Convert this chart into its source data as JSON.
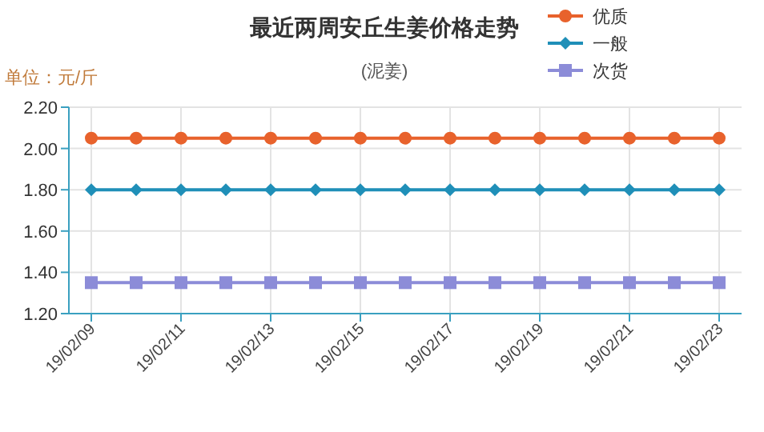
{
  "chart_data": {
    "type": "line",
    "title": "最近两周安丘生姜价格走势",
    "subtitle": "(泥姜)",
    "ylabel": "单位：元/斤",
    "categories": [
      "19/02/09",
      null,
      "19/02/11",
      null,
      "19/02/13",
      null,
      "19/02/15",
      null,
      "19/02/17",
      null,
      "19/02/19",
      null,
      "19/02/21",
      null,
      "19/02/23"
    ],
    "series": [
      {
        "name": "优质",
        "color": "#e8622c",
        "marker": "circle",
        "values": [
          2.05,
          2.05,
          2.05,
          2.05,
          2.05,
          2.05,
          2.05,
          2.05,
          2.05,
          2.05,
          2.05,
          2.05,
          2.05,
          2.05,
          2.05
        ]
      },
      {
        "name": "一般",
        "color": "#1f8fb8",
        "marker": "diamond",
        "values": [
          1.8,
          1.8,
          1.8,
          1.8,
          1.8,
          1.8,
          1.8,
          1.8,
          1.8,
          1.8,
          1.8,
          1.8,
          1.8,
          1.8,
          1.8
        ]
      },
      {
        "name": "次货",
        "color": "#8c8cd8",
        "marker": "square",
        "values": [
          1.35,
          1.35,
          1.35,
          1.35,
          1.35,
          1.35,
          1.35,
          1.35,
          1.35,
          1.35,
          1.35,
          1.35,
          1.35,
          1.35,
          1.35
        ]
      }
    ],
    "ylim": [
      1.2,
      2.2
    ],
    "yticks": [
      {
        "value": 1.2,
        "label": "1.20"
      },
      {
        "value": 1.4,
        "label": "1.40"
      },
      {
        "value": 1.6,
        "label": "1.60"
      },
      {
        "value": 1.8,
        "label": "1.80"
      },
      {
        "value": 2.0,
        "label": "2.00"
      },
      {
        "value": 2.2,
        "label": "2.20"
      }
    ],
    "grid": true,
    "legend": "top right",
    "line_style": "solid"
  }
}
